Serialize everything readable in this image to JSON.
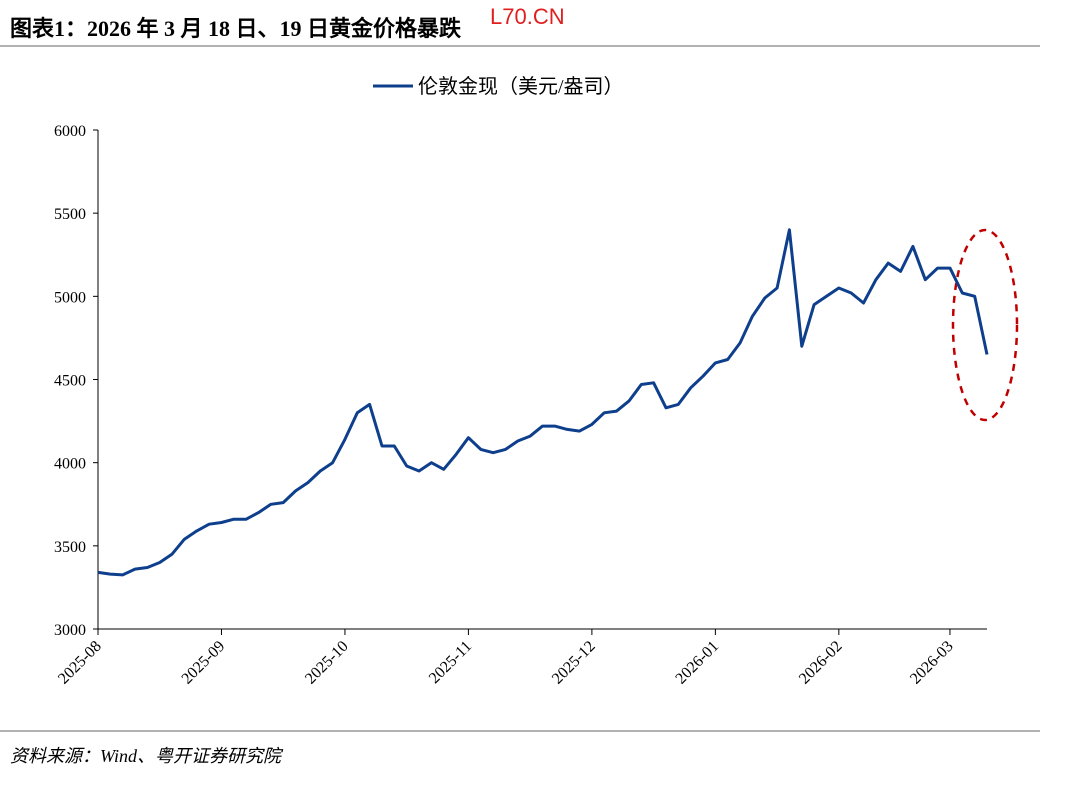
{
  "chart_data": {
    "type": "line",
    "title": "图表1：2026 年 3 月 18 日、19 日黄金价格暴跌",
    "watermark": "L70.CN",
    "source": "资料来源：Wind、粤开证券研究院",
    "categories": [
      "2025-08",
      null,
      null,
      null,
      null,
      null,
      null,
      null,
      null,
      null,
      "2025-09",
      null,
      null,
      null,
      null,
      null,
      null,
      null,
      null,
      null,
      "2025-10",
      null,
      null,
      null,
      null,
      null,
      null,
      null,
      null,
      null,
      "2025-11",
      null,
      null,
      null,
      null,
      null,
      null,
      null,
      null,
      null,
      "2025-12",
      null,
      null,
      null,
      null,
      null,
      null,
      null,
      null,
      null,
      "2026-01",
      null,
      null,
      null,
      null,
      null,
      null,
      null,
      null,
      null,
      "2026-02",
      null,
      null,
      null,
      null,
      null,
      null,
      null,
      null,
      "2026-03",
      null,
      null,
      null
    ],
    "series": [
      {
        "name": "伦敦金现（美元/盎司）",
        "color": "#0e3f8c",
        "values": [
          3340,
          3330,
          3325,
          3360,
          3370,
          3400,
          3450,
          3540,
          3590,
          3630,
          3640,
          3660,
          3660,
          3700,
          3750,
          3760,
          3830,
          3880,
          3950,
          4000,
          4140,
          4300,
          4350,
          4100,
          4100,
          3980,
          3950,
          4000,
          3960,
          4050,
          4150,
          4080,
          4060,
          4080,
          4130,
          4160,
          4220,
          4220,
          4200,
          4190,
          4230,
          4300,
          4310,
          4370,
          4470,
          4480,
          4330,
          4350,
          4450,
          4520,
          4600,
          4620,
          4720,
          4880,
          4990,
          5050,
          5400,
          4700,
          4950,
          5000,
          5050,
          5020,
          4960,
          5100,
          5200,
          5150,
          5300,
          5100,
          5170,
          5170,
          5020,
          5000,
          4650
        ]
      }
    ],
    "ylim": [
      3000,
      6000
    ],
    "yticks": [
      3000,
      3500,
      4000,
      4500,
      5000,
      5500,
      6000
    ],
    "grid": false,
    "legend": "top"
  }
}
